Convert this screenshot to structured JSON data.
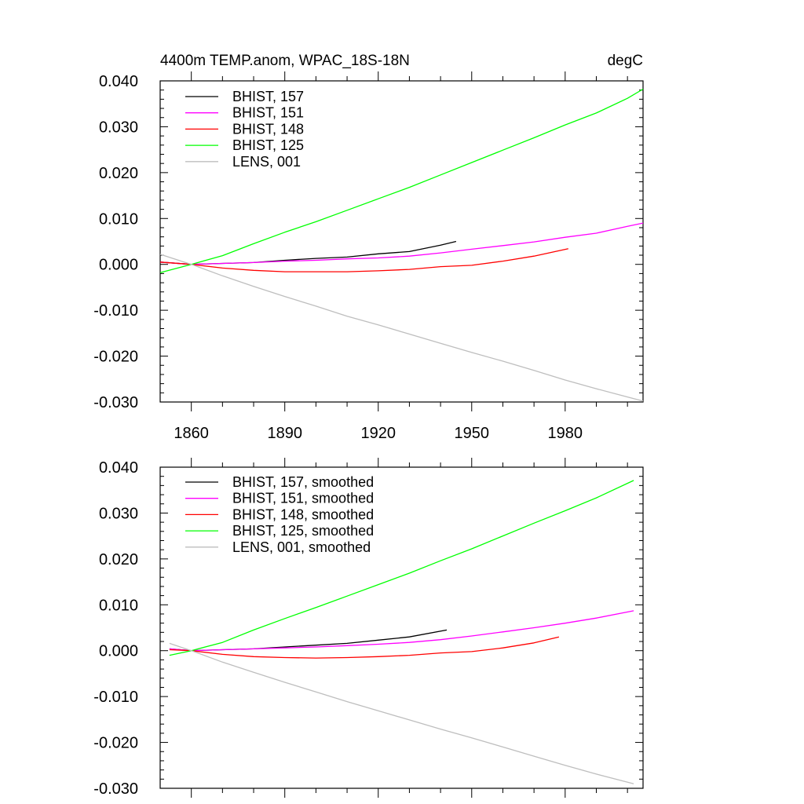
{
  "chart_data": [
    {
      "type": "line",
      "title": "4400m TEMP.anom, WPAC_18S-18N",
      "units": "degC",
      "xlabel": "",
      "ylabel": "",
      "xlim": [
        1850,
        2005
      ],
      "ylim": [
        -0.03,
        0.04
      ],
      "x_ticks": [
        1860,
        1890,
        1920,
        1950,
        1980
      ],
      "y_ticks": [
        "0.040",
        "0.030",
        "0.020",
        "0.010",
        "0.000",
        "-0.010",
        "-0.020",
        "-0.030"
      ],
      "legend_position": "top-left",
      "series": [
        {
          "name": "BHIST, 157",
          "color": "#000000",
          "x": [
            1850,
            1860,
            1870,
            1880,
            1890,
            1900,
            1910,
            1920,
            1930,
            1940,
            1945
          ],
          "y": [
            0.0005,
            0.0,
            0.0002,
            0.0004,
            0.0009,
            0.0013,
            0.0016,
            0.0023,
            0.0028,
            0.0042,
            0.005
          ]
        },
        {
          "name": "BHIST, 151",
          "color": "#ff00ff",
          "x": [
            1850,
            1860,
            1870,
            1880,
            1890,
            1900,
            1910,
            1920,
            1930,
            1940,
            1950,
            1960,
            1970,
            1980,
            1990,
            2000,
            2005
          ],
          "y": [
            0.0005,
            0.0,
            0.0002,
            0.0004,
            0.0007,
            0.0009,
            0.0012,
            0.0014,
            0.0018,
            0.0025,
            0.0033,
            0.0041,
            0.0049,
            0.0059,
            0.0068,
            0.0083,
            0.009
          ]
        },
        {
          "name": "BHIST, 148",
          "color": "#ff0000",
          "x": [
            1850,
            1860,
            1870,
            1880,
            1890,
            1900,
            1910,
            1920,
            1930,
            1940,
            1950,
            1960,
            1970,
            1981
          ],
          "y": [
            0.0005,
            0.0,
            -0.0008,
            -0.0013,
            -0.0016,
            -0.0016,
            -0.0016,
            -0.0014,
            -0.0011,
            -0.0005,
            -0.0002,
            0.0007,
            0.0018,
            0.0034
          ]
        },
        {
          "name": "BHIST, 125",
          "color": "#00ff00",
          "x": [
            1850,
            1860,
            1870,
            1880,
            1890,
            1900,
            1910,
            1920,
            1930,
            1940,
            1950,
            1960,
            1970,
            1980,
            1990,
            2000,
            2005
          ],
          "y": [
            -0.0018,
            0.0,
            0.0019,
            0.0045,
            0.007,
            0.0093,
            0.0118,
            0.0143,
            0.0168,
            0.0195,
            0.0222,
            0.0249,
            0.0276,
            0.0304,
            0.033,
            0.0362,
            0.0382
          ]
        },
        {
          "name": "LENS, 001",
          "color": "#bebebe",
          "x": [
            1850,
            1860,
            1870,
            1880,
            1890,
            1900,
            1910,
            1920,
            1930,
            1940,
            1950,
            1960,
            1970,
            1980,
            1990,
            2000,
            2005
          ],
          "y": [
            0.0022,
            0.0,
            -0.0025,
            -0.0048,
            -0.007,
            -0.0091,
            -0.0113,
            -0.0132,
            -0.0152,
            -0.0172,
            -0.0192,
            -0.0211,
            -0.0231,
            -0.0252,
            -0.0271,
            -0.0289,
            -0.0298
          ]
        }
      ]
    },
    {
      "type": "line",
      "title": "",
      "units": "",
      "xlabel": "",
      "ylabel": "",
      "xlim": [
        1850,
        2005
      ],
      "ylim": [
        -0.03,
        0.04
      ],
      "x_ticks": [],
      "y_ticks": [
        "0.040",
        "0.030",
        "0.020",
        "0.010",
        "0.000",
        "-0.010",
        "-0.020",
        "-0.030"
      ],
      "legend_position": "top-left",
      "series": [
        {
          "name": "BHIST, 157, smoothed",
          "color": "#000000",
          "x": [
            1853,
            1860,
            1870,
            1880,
            1890,
            1900,
            1910,
            1920,
            1930,
            1942
          ],
          "y": [
            0.0004,
            0.0,
            0.0002,
            0.0004,
            0.0008,
            0.0012,
            0.0016,
            0.0023,
            0.003,
            0.0045
          ]
        },
        {
          "name": "BHIST, 151, smoothed",
          "color": "#ff00ff",
          "x": [
            1853,
            1860,
            1870,
            1880,
            1890,
            1900,
            1910,
            1920,
            1930,
            1940,
            1950,
            1960,
            1970,
            1980,
            1990,
            2002
          ],
          "y": [
            0.0004,
            0.0,
            0.0002,
            0.0004,
            0.0006,
            0.0008,
            0.0011,
            0.0014,
            0.0018,
            0.0024,
            0.0032,
            0.0041,
            0.005,
            0.006,
            0.0071,
            0.0087
          ]
        },
        {
          "name": "BHIST, 148, smoothed",
          "color": "#ff0000",
          "x": [
            1853,
            1860,
            1870,
            1880,
            1890,
            1900,
            1910,
            1920,
            1930,
            1940,
            1950,
            1960,
            1970,
            1978
          ],
          "y": [
            0.0002,
            0.0,
            -0.0008,
            -0.0013,
            -0.0015,
            -0.0016,
            -0.0015,
            -0.0013,
            -0.001,
            -0.0005,
            -0.0002,
            0.0006,
            0.0017,
            0.003
          ]
        },
        {
          "name": "BHIST, 125, smoothed",
          "color": "#00ff00",
          "x": [
            1853,
            1860,
            1870,
            1880,
            1890,
            1900,
            1910,
            1920,
            1930,
            1940,
            1950,
            1960,
            1970,
            1980,
            1990,
            2002
          ],
          "y": [
            -0.001,
            0.0,
            0.0018,
            0.0045,
            0.007,
            0.0094,
            0.0119,
            0.0144,
            0.0169,
            0.0196,
            0.0222,
            0.025,
            0.0278,
            0.0305,
            0.0333,
            0.0371
          ]
        },
        {
          "name": "LENS, 001, smoothed",
          "color": "#bebebe",
          "x": [
            1853,
            1860,
            1870,
            1880,
            1890,
            1900,
            1910,
            1920,
            1930,
            1940,
            1950,
            1960,
            1970,
            1980,
            1990,
            2002
          ],
          "y": [
            0.0016,
            0.0,
            -0.0025,
            -0.0047,
            -0.0069,
            -0.009,
            -0.0111,
            -0.0131,
            -0.0151,
            -0.0171,
            -0.019,
            -0.021,
            -0.023,
            -0.025,
            -0.0269,
            -0.029
          ]
        }
      ]
    }
  ]
}
